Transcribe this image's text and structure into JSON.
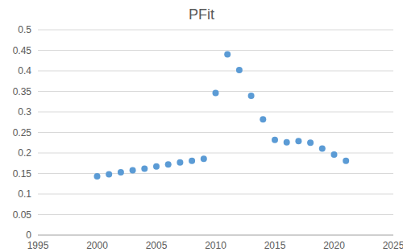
{
  "chart_data": {
    "type": "scatter",
    "title": "PFit",
    "x": [
      2000,
      2001,
      2002,
      2003,
      2004,
      2005,
      2006,
      2007,
      2008,
      2009,
      2010,
      2011,
      2012,
      2013,
      2014,
      2015,
      2016,
      2017,
      2018,
      2019,
      2020,
      2021
    ],
    "values": [
      0.143,
      0.148,
      0.153,
      0.158,
      0.162,
      0.167,
      0.172,
      0.177,
      0.181,
      0.186,
      0.346,
      0.44,
      0.402,
      0.339,
      0.282,
      0.232,
      0.226,
      0.229,
      0.225,
      0.211,
      0.196,
      0.181
    ],
    "color": "#5b9bd5",
    "marker": "circle",
    "xlim": [
      1995,
      2025
    ],
    "xticks": [
      1995,
      2000,
      2005,
      2010,
      2015,
      2020,
      2025
    ],
    "ylim": [
      0,
      0.5
    ],
    "yticks": [
      0,
      0.05,
      0.1,
      0.15,
      0.2,
      0.25,
      0.3,
      0.35,
      0.4,
      0.45,
      0.5
    ],
    "grid": true
  }
}
